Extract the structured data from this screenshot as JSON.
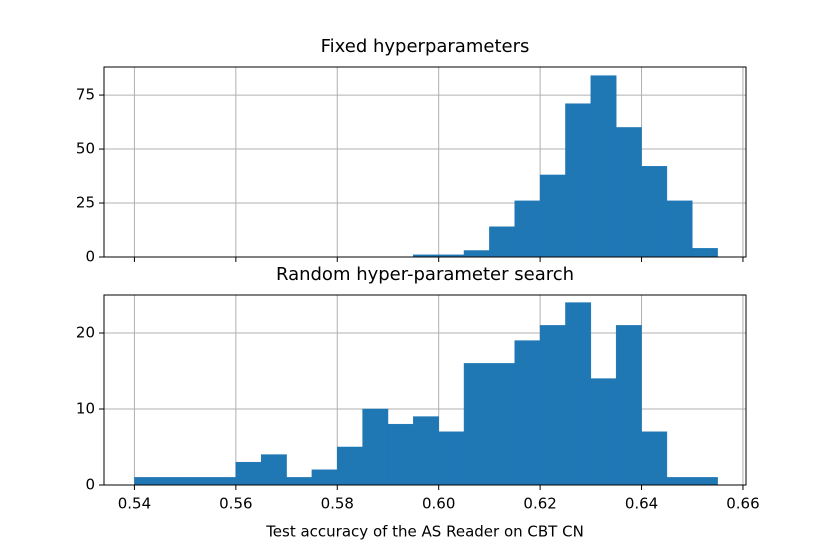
{
  "chart_data": [
    {
      "type": "histogram",
      "title": "Fixed hyperparameters",
      "color": "#1f77b4",
      "grid": true,
      "bins": [
        0.595,
        0.6,
        0.605,
        0.61,
        0.615,
        0.62,
        0.625,
        0.63,
        0.635,
        0.64,
        0.645,
        0.65,
        0.655
      ],
      "values": [
        1,
        1,
        3,
        14,
        26,
        38,
        71,
        84,
        60,
        42,
        26,
        4
      ],
      "xlim": [
        0.534,
        0.6606
      ],
      "ylim": [
        0,
        88
      ],
      "xticks": [
        0.54,
        0.56,
        0.58,
        0.6,
        0.62,
        0.64,
        0.66
      ],
      "yticks": [
        0,
        25,
        50,
        75
      ]
    },
    {
      "type": "histogram",
      "title": "Random hyper-parameter search",
      "color": "#1f77b4",
      "grid": true,
      "x_label": "Test accuracy of the AS Reader on CBT CN",
      "bins": [
        0.54,
        0.545,
        0.55,
        0.555,
        0.56,
        0.565,
        0.57,
        0.575,
        0.58,
        0.585,
        0.59,
        0.595,
        0.6,
        0.605,
        0.61,
        0.615,
        0.62,
        0.625,
        0.63,
        0.635,
        0.64,
        0.645,
        0.65,
        0.655
      ],
      "values": [
        1,
        1,
        1,
        1,
        3,
        4,
        1,
        2,
        5,
        10,
        8,
        9,
        7,
        16,
        16,
        19,
        21,
        24,
        14,
        21,
        7,
        1,
        1
      ],
      "xlim": [
        0.534,
        0.6606
      ],
      "ylim": [
        0,
        25
      ],
      "xticks": [
        0.54,
        0.56,
        0.58,
        {
          "value": 0.6,
          "label": "0.60"
        },
        0.62,
        0.64,
        0.66
      ],
      "yticks": [
        0,
        10,
        20
      ]
    }
  ]
}
